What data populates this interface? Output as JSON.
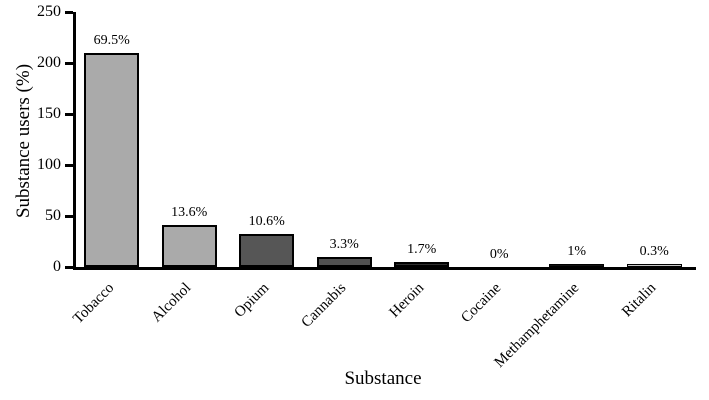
{
  "chart_data": {
    "type": "bar",
    "title": "",
    "xlabel": "Substance",
    "ylabel": "Substance users (%)",
    "categories": [
      "Tobacco",
      "Alcohol",
      "Opium",
      "Cannabis",
      "Heroin",
      "Cocaine",
      "Methamphetamine",
      "Ritalin"
    ],
    "bar_value_labels": [
      "69.5%",
      "13.6%",
      "10.6%",
      "3.3%",
      "1.7%",
      "0%",
      "1%",
      "0.3%"
    ],
    "bar_heights_axis_units": [
      210,
      41,
      32,
      10,
      5,
      0,
      3,
      1
    ],
    "bar_fill_colors": [
      "#aaaaaa",
      "#aaaaaa",
      "#565656",
      "#515151",
      "#2e2e2e",
      "#ffffff",
      "#111111",
      "#c6c6c6"
    ],
    "bar_border_color": "#000000",
    "axis_color": "#000000",
    "background_color": "#ffffff",
    "ylim": [
      0,
      250
    ],
    "yticks": [
      0,
      50,
      100,
      150,
      200,
      250
    ],
    "grid": false,
    "legend": "none",
    "bar_label_position": "above-bar"
  }
}
